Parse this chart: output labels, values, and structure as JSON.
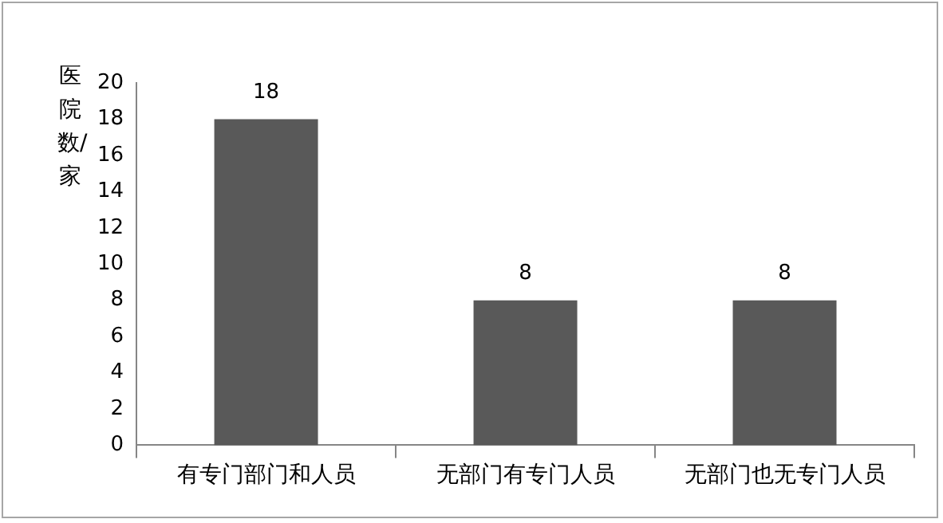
{
  "chart_data": {
    "type": "bar",
    "ylabel": "医院数/家",
    "categories": [
      "有专门部门和人员",
      "无部门有专门人员",
      "无部门也无专门人员"
    ],
    "values": [
      18,
      8,
      8
    ],
    "color": "#595959",
    "ylim": [
      0,
      20
    ],
    "yticks": [
      0,
      2,
      4,
      6,
      8,
      10,
      12,
      14,
      16,
      18,
      20
    ],
    "grid": false,
    "legend": false,
    "data_labels": true
  }
}
